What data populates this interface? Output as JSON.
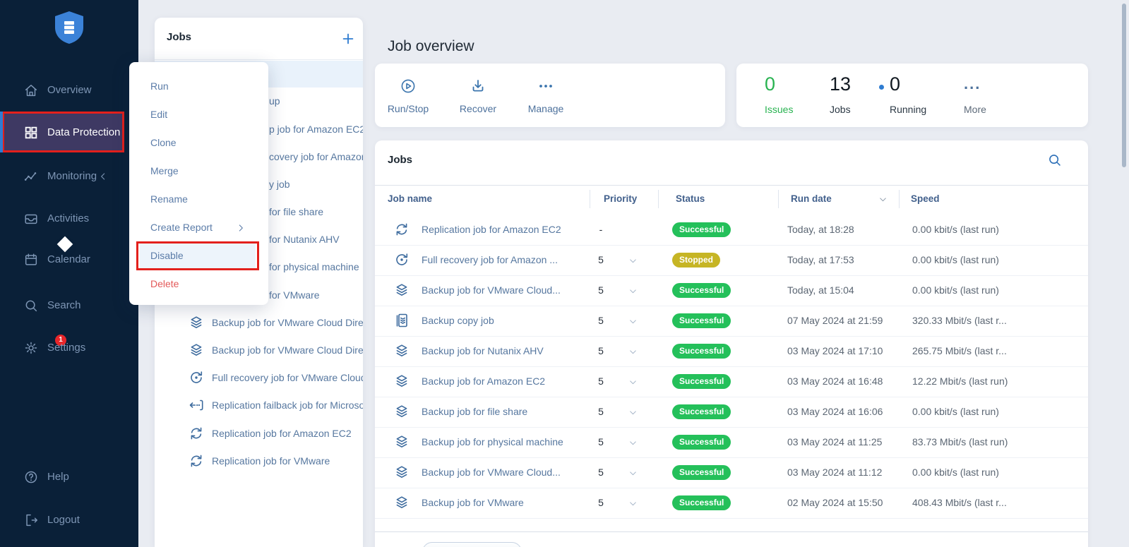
{
  "header": {
    "title": "Job overview"
  },
  "sidebar": {
    "items": [
      {
        "label": "Overview",
        "icon": "home-icon"
      },
      {
        "label": "Data Protection",
        "icon": "grid-icon",
        "active": true,
        "annotated": true
      },
      {
        "label": "Monitoring",
        "icon": "monitoring-icon",
        "collapse_chevron": true
      },
      {
        "label": "Activities",
        "icon": "inbox-icon"
      },
      {
        "label": "Calendar",
        "icon": "calendar-icon"
      },
      {
        "label": "Search",
        "icon": "search-icon"
      },
      {
        "label": "Settings",
        "icon": "gear-icon",
        "badge": "1"
      },
      {
        "label": "Help",
        "icon": "help-icon"
      },
      {
        "label": "Logout",
        "icon": "logout-icon"
      }
    ]
  },
  "jobs_panel": {
    "title": "Jobs",
    "partial_rows": [
      "up",
      "p job for Amazon EC2",
      "covery job for Amazon E",
      "y job",
      "for file share",
      "for Nutanix AHV",
      "for physical machine",
      "for VMware"
    ],
    "visible_rows": [
      {
        "icon": "backup-icon",
        "label": "Backup job for VMware Cloud Direc"
      },
      {
        "icon": "backup-icon",
        "label": "Backup job for VMware Cloud Direc"
      },
      {
        "icon": "recovery-icon",
        "label": "Full recovery job for VMware Cloud"
      },
      {
        "icon": "failback-icon",
        "label": "Replication failback job for Microsof"
      },
      {
        "icon": "replication-icon",
        "label": "Replication job for Amazon EC2"
      },
      {
        "icon": "replication-icon",
        "label": "Replication job for VMware"
      }
    ]
  },
  "context_menu": {
    "items": [
      {
        "label": "Run"
      },
      {
        "label": "Edit"
      },
      {
        "label": "Clone"
      },
      {
        "label": "Merge"
      },
      {
        "label": "Rename"
      },
      {
        "label": "Create Report",
        "submenu": true
      },
      {
        "label": "Disable",
        "highlighted": true,
        "annotated": true
      },
      {
        "label": "Delete",
        "danger": true
      }
    ]
  },
  "toolbar": {
    "actions": [
      {
        "label": "Run/Stop",
        "icon": "play-circle-icon"
      },
      {
        "label": "Recover",
        "icon": "download-icon"
      },
      {
        "label": "Manage",
        "icon": "ellipsis-icon"
      }
    ]
  },
  "stats": {
    "items": [
      {
        "value": "0",
        "label": "Issues",
        "color": "green"
      },
      {
        "value": "13",
        "label": "Jobs"
      },
      {
        "value": "0",
        "label": "Running",
        "dot": true
      },
      {
        "value": "...",
        "label": "More",
        "more": true
      }
    ]
  },
  "jobs_table": {
    "title": "Jobs",
    "columns": [
      "Job name",
      "Priority",
      "Status",
      "Run date",
      "Speed"
    ],
    "sorted_column": "Run date",
    "status_colors": {
      "Successful": "#24c05a",
      "Stopped": "#c6b525"
    },
    "rows": [
      {
        "icon": "replication-icon",
        "name": "Replication job for Amazon EC2",
        "priority": "-",
        "priority_dropdown": false,
        "status": "Successful",
        "run_date": "Today, at 18:28",
        "speed": "0.00 kbit/s (last run)"
      },
      {
        "icon": "recovery-icon",
        "name": "Full recovery job for Amazon ...",
        "priority": "5",
        "priority_dropdown": true,
        "status": "Stopped",
        "run_date": "Today, at 17:53",
        "speed": "0.00 kbit/s (last run)"
      },
      {
        "icon": "backup-icon",
        "name": "Backup job for VMware Cloud...",
        "priority": "5",
        "priority_dropdown": true,
        "status": "Successful",
        "run_date": "Today, at 15:04",
        "speed": "0.00 kbit/s (last run)"
      },
      {
        "icon": "backup-copy-icon",
        "name": "Backup copy job",
        "priority": "5",
        "priority_dropdown": true,
        "status": "Successful",
        "run_date": "07 May 2024 at 21:59",
        "speed": "320.33 Mbit/s (last r..."
      },
      {
        "icon": "backup-icon",
        "name": "Backup job for Nutanix AHV",
        "priority": "5",
        "priority_dropdown": true,
        "status": "Successful",
        "run_date": "03 May 2024 at 17:10",
        "speed": "265.75 Mbit/s (last r..."
      },
      {
        "icon": "backup-icon",
        "name": "Backup job for Amazon EC2",
        "priority": "5",
        "priority_dropdown": true,
        "status": "Successful",
        "run_date": "03 May 2024 at 16:48",
        "speed": "12.22 Mbit/s (last run)"
      },
      {
        "icon": "backup-icon",
        "name": "Backup job for file share",
        "priority": "5",
        "priority_dropdown": true,
        "status": "Successful",
        "run_date": "03 May 2024 at 16:06",
        "speed": "0.00 kbit/s (last run)"
      },
      {
        "icon": "backup-icon",
        "name": "Backup job for physical machine",
        "priority": "5",
        "priority_dropdown": true,
        "status": "Successful",
        "run_date": "03 May 2024 at 11:25",
        "speed": "83.73 Mbit/s (last run)"
      },
      {
        "icon": "backup-icon",
        "name": "Backup job for VMware Cloud...",
        "priority": "5",
        "priority_dropdown": true,
        "status": "Successful",
        "run_date": "03 May 2024 at 11:12",
        "speed": "0.00 kbit/s (last run)"
      },
      {
        "icon": "backup-icon",
        "name": "Backup job for VMware",
        "priority": "5",
        "priority_dropdown": true,
        "status": "Successful",
        "run_date": "02 May 2024 at 15:50",
        "speed": "408.43 Mbit/s (last r..."
      }
    ]
  },
  "colors": {
    "sidebar_bg": "#0a2038",
    "active_item_bg": "#3e3963",
    "accent_blue": "#2e7cd1",
    "annotation_red": "#e3201c",
    "success_green": "#24c05a",
    "stopped_yellow": "#c6b525"
  }
}
